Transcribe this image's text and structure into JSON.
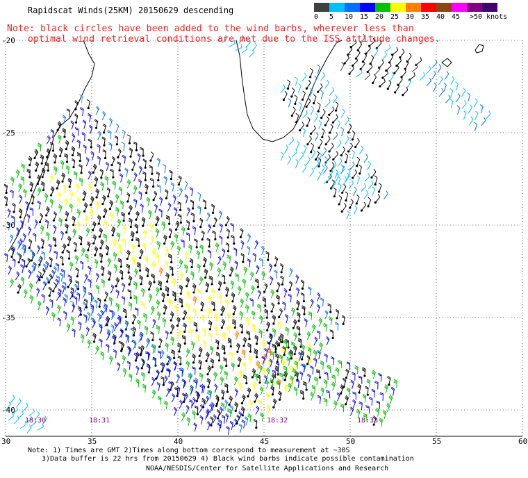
{
  "title": "Rapidscat Winds(25KM) 20150629 descending",
  "note": {
    "line1": "Note: black circles have been added to the wind barbs, wherever less than",
    "line2": "optimal wind retrieval conditions are met due to the ISS attitude changes."
  },
  "legend": {
    "labels": [
      "0",
      "5",
      "10",
      "15",
      "20",
      "25",
      "30",
      "35",
      "40",
      "45",
      ">50 knots"
    ],
    "colors": [
      "#404040",
      "#00c0ff",
      "#0070ff",
      "#0000ff",
      "#00c000",
      "#ffff00",
      "#ff8000",
      "#ff0000",
      "#8b4513",
      "#ff00ff",
      "#800080",
      "#400070"
    ]
  },
  "axes": {
    "lon_labels": [
      "30",
      "35",
      "40",
      "45",
      "50",
      "55",
      "60"
    ],
    "lat_labels": [
      "-20",
      "-25",
      "-30",
      "-35",
      "-40"
    ]
  },
  "times": [
    "18:30",
    "18:31",
    "18:32",
    "18:33"
  ],
  "footer": {
    "line1": "Note: 1) Times are GMT 2)Times along bottom correspond to measurement at ~30S",
    "line2": "3)Data buffer is 22 hrs from 20150629 4) Black wind barbs indicate possible contamination",
    "line3": "NOAA/NESDIS/Center for Satellite Applications and Research"
  },
  "map": {
    "land_color": "#ffffff",
    "coast_color": "#000000",
    "grid_color": "#000000",
    "flag_color": "#000000"
  }
}
